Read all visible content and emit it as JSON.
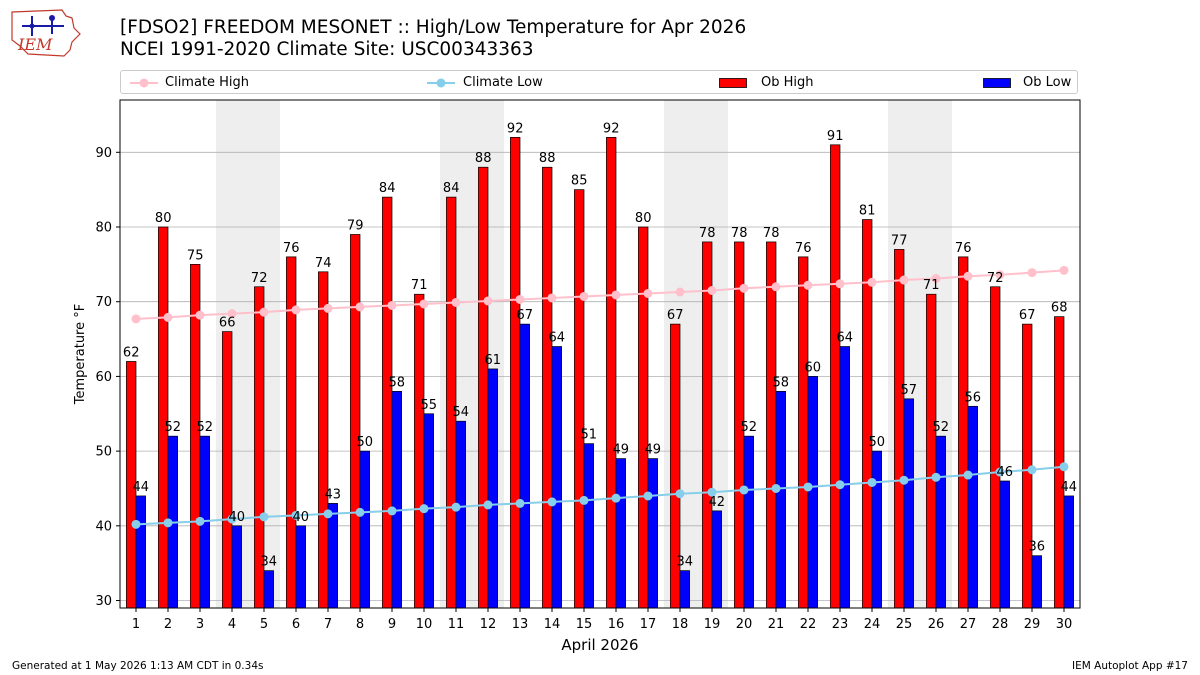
{
  "header": {
    "title_line1": "[FDSO2] FREEDOM MESONET :: High/Low Temperature for Apr 2026",
    "title_line2": "NCEI 1991-2020 Climate Site: USC00343363",
    "logo_text": "IEM"
  },
  "legend": [
    {
      "label": "Climate High",
      "kind": "line",
      "color": "#ffc0cb"
    },
    {
      "label": "Climate Low",
      "kind": "line",
      "color": "#87ceeb"
    },
    {
      "label": "Ob High",
      "kind": "bar",
      "color": "#ff0000"
    },
    {
      "label": "Ob Low",
      "kind": "bar",
      "color": "#0000ff"
    }
  ],
  "footer": {
    "left": "Generated at 1 May 2026 1:13 AM CDT in 0.34s",
    "right": "IEM Autoplot App #17"
  },
  "chart_data": {
    "type": "bar",
    "xlabel": "April 2026",
    "ylabel": "Temperature °F",
    "ylim": [
      29,
      97
    ],
    "yticks": [
      30,
      40,
      50,
      60,
      70,
      80,
      90
    ],
    "grid": "horizontal",
    "legend_position": "top",
    "categories": [
      "1",
      "2",
      "3",
      "4",
      "5",
      "6",
      "7",
      "8",
      "9",
      "10",
      "11",
      "12",
      "13",
      "14",
      "15",
      "16",
      "17",
      "18",
      "19",
      "20",
      "21",
      "22",
      "23",
      "24",
      "25",
      "26",
      "27",
      "28",
      "29",
      "30"
    ],
    "weekend_shading": [
      [
        4,
        5
      ],
      [
        11,
        12
      ],
      [
        18,
        19
      ],
      [
        25,
        26
      ]
    ],
    "series": [
      {
        "name": "Ob High",
        "kind": "bar",
        "color": "#ff0000",
        "values": [
          62,
          80,
          75,
          66,
          72,
          76,
          74,
          79,
          84,
          71,
          84,
          88,
          92,
          88,
          85,
          92,
          80,
          67,
          78,
          78,
          78,
          76,
          91,
          81,
          77,
          71,
          76,
          72,
          67,
          68
        ]
      },
      {
        "name": "Ob Low",
        "kind": "bar",
        "color": "#0000ff",
        "values": [
          44,
          52,
          52,
          40,
          34,
          40,
          43,
          50,
          58,
          55,
          54,
          61,
          67,
          64,
          51,
          49,
          49,
          34,
          42,
          52,
          58,
          60,
          64,
          50,
          57,
          52,
          56,
          46,
          36,
          44
        ]
      },
      {
        "name": "Climate High",
        "kind": "line",
        "color": "#ffc0cb",
        "values": [
          67.7,
          67.9,
          68.2,
          68.4,
          68.6,
          68.9,
          69.1,
          69.3,
          69.5,
          69.7,
          69.9,
          70.1,
          70.3,
          70.5,
          70.7,
          70.9,
          71.1,
          71.3,
          71.5,
          71.8,
          72.0,
          72.2,
          72.4,
          72.6,
          72.9,
          73.1,
          73.4,
          73.6,
          73.9,
          74.2
        ]
      },
      {
        "name": "Climate Low",
        "kind": "line",
        "color": "#87ceeb",
        "values": [
          40.2,
          40.4,
          40.6,
          40.9,
          41.2,
          41.4,
          41.6,
          41.8,
          42.0,
          42.3,
          42.5,
          42.8,
          43.0,
          43.2,
          43.4,
          43.7,
          44.0,
          44.3,
          44.5,
          44.8,
          45.0,
          45.2,
          45.5,
          45.8,
          46.1,
          46.5,
          46.8,
          47.2,
          47.5,
          47.9
        ]
      }
    ]
  }
}
